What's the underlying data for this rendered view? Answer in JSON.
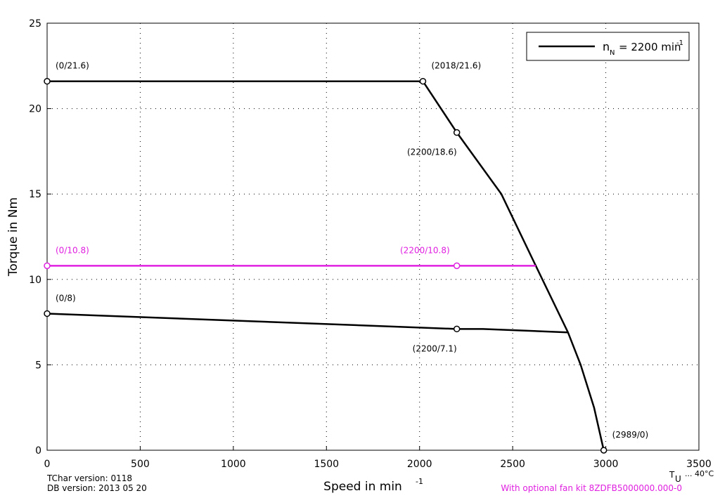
{
  "chart_data": {
    "type": "line",
    "ylabel": "Torque in Nm",
    "xlabel": "Speed in min",
    "xlabel_sup": "-1",
    "xlim": [
      0,
      3500
    ],
    "xticks": [
      0,
      500,
      1000,
      1500,
      2000,
      2500,
      3000,
      3500
    ],
    "ylim": [
      0,
      25
    ],
    "yticks": [
      0,
      5,
      10,
      15,
      20,
      25
    ],
    "grid": true,
    "legend": "upper right",
    "series": [
      {
        "name": "n",
        "name_sub": "N",
        "name_rest": "= 2200 min",
        "name_sup": "-1",
        "color": "#000000",
        "legend": true,
        "x": [
          0,
          2018,
          2200,
          2439,
          2624,
          2797,
          2865,
          2937,
          2989
        ],
        "values": [
          21.6,
          21.6,
          18.6,
          15,
          10.8,
          6.9,
          5,
          2.5,
          0
        ]
      },
      {
        "name": null,
        "color": "#e020e0",
        "legend": false,
        "x": [
          0,
          2200,
          2624
        ],
        "values": [
          10.8,
          10.8,
          10.8
        ]
      },
      {
        "name": null,
        "color": "#000000",
        "legend": false,
        "x": [
          0,
          2200,
          2340,
          2797
        ],
        "values": [
          8,
          7.1,
          7.1,
          6.9
        ]
      }
    ],
    "annotations": [
      {
        "text": "(0/21.6)",
        "x": 0,
        "y": 21.6,
        "color": "#000000",
        "position": "above-right"
      },
      {
        "text": "(2018/21.6)",
        "x": 2018,
        "y": 21.6,
        "color": "#000000",
        "position": "above-right"
      },
      {
        "text": "(2200/18.6)",
        "x": 2200,
        "y": 18.6,
        "color": "#000000",
        "position": "below-left"
      },
      {
        "text": "(0/10.8)",
        "x": 0,
        "y": 10.8,
        "color": "#e020e0",
        "position": "above-right"
      },
      {
        "text": "(2200/10.8)",
        "x": 2200,
        "y": 10.8,
        "color": "#e020e0",
        "position": "above-left"
      },
      {
        "text": "(0/8)",
        "x": 0,
        "y": 8,
        "color": "#000000",
        "position": "above-right"
      },
      {
        "text": "(2200/7.1)",
        "x": 2200,
        "y": 7.1,
        "color": "#000000",
        "position": "below-left"
      },
      {
        "text": "(2989/0)",
        "x": 2989,
        "y": 0,
        "color": "#000000",
        "position": "above-right"
      }
    ],
    "footer": {
      "tchar": "TChar version: 0118",
      "db": "DB version: 2013 05 20",
      "temp_symbol": "T",
      "temp_sub": "U",
      "temp_rest": "... 40°C",
      "fan": "With optional fan kit 8ZDFB5000000.000-0"
    }
  }
}
